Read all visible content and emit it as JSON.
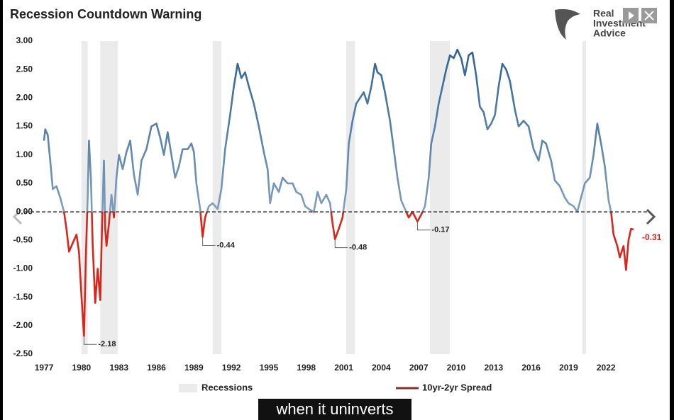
{
  "logo": [
    "Real",
    "Investment",
    "Advice"
  ],
  "caption": "when it uninverts",
  "chart_data": {
    "type": "line",
    "title": "Recession Countdown Warning",
    "xlim": [
      1976.6,
      2024.6
    ],
    "ylim": [
      -2.5,
      3.0
    ],
    "xticks": [
      1977,
      1980,
      1983,
      1986,
      1989,
      1992,
      1995,
      1998,
      2001,
      2004,
      2007,
      2010,
      2013,
      2016,
      2019,
      2022
    ],
    "yticks": [
      {
        "value": 3.0,
        "label": "3.00"
      },
      {
        "value": 2.5,
        "label": "2.50"
      },
      {
        "value": 2.0,
        "label": "2.00"
      },
      {
        "value": 1.5,
        "label": "1.50"
      },
      {
        "value": 1.0,
        "label": "1.00"
      },
      {
        "value": 0.5,
        "label": "0.50"
      },
      {
        "value": 0,
        "label": "0.00"
      },
      {
        "value": -0.5,
        "label": "-0.50"
      },
      {
        "value": -1.0,
        "label": "-1.00"
      },
      {
        "value": -1.5,
        "label": "-1.50"
      },
      {
        "value": -2.0,
        "label": "-2.00"
      },
      {
        "value": -2.5,
        "label": "-2.50"
      }
    ],
    "zero_line": true,
    "legend": "bottom",
    "recessions": {
      "name": "Recessions",
      "color": "#ebebeb",
      "periods": [
        [
          1980.0,
          1980.5
        ],
        [
          1981.5,
          1982.9
        ],
        [
          1990.5,
          1991.2
        ],
        [
          2001.2,
          2001.9
        ],
        [
          2007.9,
          2009.5
        ],
        [
          2020.1,
          2020.4
        ]
      ]
    },
    "series": [
      {
        "name": "10yr-2yr Spread",
        "color": "#2a5f92",
        "negative_color": "#d9261c",
        "legend_color": "#8b2f2f",
        "x": [
          1977.0,
          1977.1,
          1977.3,
          1977.5,
          1977.7,
          1978.0,
          1978.3,
          1978.6,
          1978.8,
          1979.0,
          1979.3,
          1979.6,
          1979.8,
          1980.0,
          1980.2,
          1980.35,
          1980.5,
          1980.6,
          1980.75,
          1980.9,
          1981.1,
          1981.3,
          1981.5,
          1981.65,
          1981.8,
          1981.9,
          1982.0,
          1982.2,
          1982.4,
          1982.6,
          1982.8,
          1983.0,
          1983.3,
          1983.6,
          1983.9,
          1984.2,
          1984.5,
          1984.8,
          1985.2,
          1985.6,
          1986.0,
          1986.3,
          1986.6,
          1986.9,
          1987.2,
          1987.5,
          1987.8,
          1988.1,
          1988.5,
          1988.8,
          1989.0,
          1989.2,
          1989.5,
          1989.7,
          1989.9,
          1990.2,
          1990.5,
          1990.9,
          1991.2,
          1991.5,
          1991.9,
          1992.2,
          1992.5,
          1992.8,
          1993.1,
          1993.4,
          1993.8,
          1994.2,
          1994.6,
          1994.9,
          1995.1,
          1995.4,
          1995.8,
          1996.1,
          1996.5,
          1996.9,
          1997.2,
          1997.6,
          1997.9,
          1998.2,
          1998.6,
          1998.9,
          1999.2,
          1999.6,
          1999.9,
          2000.1,
          2000.3,
          2000.6,
          2000.9,
          2001.2,
          2001.4,
          2001.7,
          2002.0,
          2002.3,
          2002.6,
          2002.9,
          2003.2,
          2003.5,
          2003.7,
          2004.0,
          2004.3,
          2004.7,
          2005.0,
          2005.3,
          2005.6,
          2005.9,
          2006.2,
          2006.5,
          2006.9,
          2007.2,
          2007.5,
          2007.8,
          2008.0,
          2008.3,
          2008.6,
          2008.9,
          2009.2,
          2009.5,
          2009.8,
          2010.1,
          2010.4,
          2010.7,
          2011.0,
          2011.3,
          2011.6,
          2011.9,
          2012.2,
          2012.5,
          2012.8,
          2013.1,
          2013.4,
          2013.7,
          2014.0,
          2014.3,
          2014.7,
          2015.0,
          2015.4,
          2015.8,
          2016.2,
          2016.6,
          2016.9,
          2017.2,
          2017.6,
          2017.9,
          2018.3,
          2018.7,
          2019.0,
          2019.4,
          2019.7,
          2020.0,
          2020.3,
          2020.7,
          2021.0,
          2021.3,
          2021.6,
          2021.9,
          2022.2,
          2022.4,
          2022.6,
          2022.9,
          2023.1,
          2023.4,
          2023.6,
          2023.8,
          2024.0,
          2024.2
        ],
        "values": [
          1.25,
          1.45,
          1.35,
          0.9,
          0.4,
          0.45,
          0.25,
          0.0,
          -0.3,
          -0.7,
          -0.55,
          -0.4,
          -0.7,
          -1.5,
          -2.18,
          -0.8,
          0.3,
          1.25,
          0.6,
          -0.6,
          -1.6,
          -1.0,
          -1.55,
          -0.2,
          0.9,
          -0.3,
          -0.6,
          -0.2,
          0.3,
          -0.1,
          0.6,
          1.0,
          0.75,
          1.05,
          1.25,
          0.65,
          0.3,
          0.9,
          1.1,
          1.5,
          1.55,
          1.3,
          1.0,
          1.4,
          1.0,
          0.6,
          0.8,
          1.1,
          1.1,
          1.2,
          1.05,
          0.5,
          0.05,
          -0.44,
          -0.1,
          0.1,
          0.15,
          0.05,
          0.4,
          1.1,
          1.7,
          2.2,
          2.6,
          2.35,
          2.45,
          2.2,
          1.9,
          1.5,
          1.05,
          0.75,
          0.15,
          0.5,
          0.35,
          0.6,
          0.5,
          0.5,
          0.35,
          0.3,
          0.1,
          0.05,
          0.0,
          0.35,
          0.15,
          0.3,
          0.15,
          -0.2,
          -0.48,
          -0.3,
          -0.1,
          0.4,
          1.2,
          1.6,
          1.9,
          2.0,
          2.1,
          1.9,
          2.2,
          2.6,
          2.45,
          2.4,
          2.1,
          1.6,
          1.1,
          0.6,
          0.2,
          0.05,
          -0.1,
          0.0,
          -0.17,
          -0.05,
          0.1,
          0.6,
          1.2,
          1.5,
          1.9,
          2.2,
          2.5,
          2.75,
          2.7,
          2.85,
          2.7,
          2.4,
          2.75,
          2.8,
          2.4,
          1.85,
          1.75,
          1.45,
          1.55,
          1.7,
          2.2,
          2.6,
          2.5,
          2.3,
          1.8,
          1.5,
          1.6,
          1.5,
          1.1,
          0.9,
          1.25,
          1.2,
          0.9,
          0.55,
          0.45,
          0.25,
          0.15,
          0.1,
          0.0,
          0.25,
          0.5,
          0.6,
          1.0,
          1.55,
          1.2,
          0.8,
          0.2,
          0.0,
          -0.4,
          -0.6,
          -0.8,
          -0.6,
          -1.02,
          -0.5,
          -0.3,
          -0.31
        ]
      }
    ],
    "annotations": [
      {
        "x": 1980.2,
        "value": -2.18,
        "leader": true
      },
      {
        "x": 1989.7,
        "value": -0.44,
        "leader": true
      },
      {
        "x": 2000.3,
        "value": -0.48,
        "leader": true
      },
      {
        "x": 2006.9,
        "value": -0.17,
        "leader": true
      },
      {
        "x": 2024.2,
        "value": -0.31,
        "leader": false,
        "color": "#d9261c"
      }
    ]
  }
}
